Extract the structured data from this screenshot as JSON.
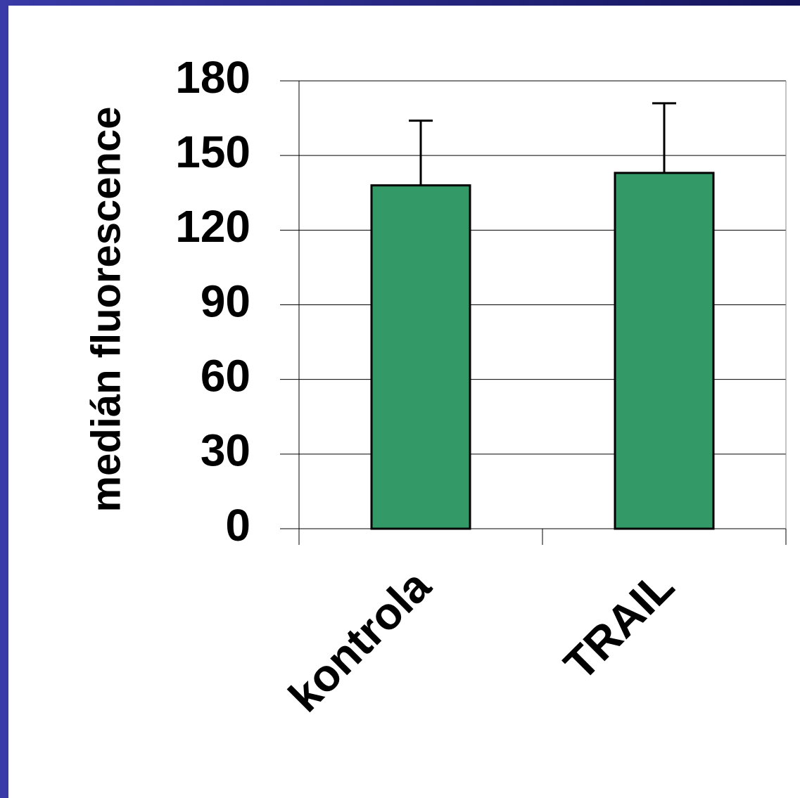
{
  "chart_data": {
    "type": "bar",
    "y_label": "medián fluorescence",
    "categories": [
      "kontrola",
      "TRAIL"
    ],
    "series": [
      {
        "values": [
          138,
          143
        ],
        "errors": [
          26,
          28
        ],
        "color": "#339966"
      }
    ],
    "ylim": [
      0,
      180
    ],
    "yticks": [
      0,
      30,
      60,
      90,
      120,
      150,
      180
    ],
    "grid": true
  }
}
